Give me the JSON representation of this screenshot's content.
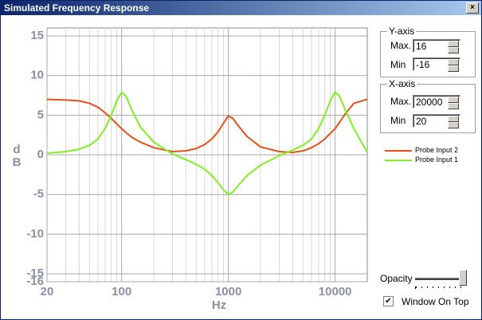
{
  "window": {
    "title": "Simulated Frequency Response"
  },
  "chart_data": {
    "type": "line",
    "x_label": "Hz",
    "y_label": [
      "d",
      "B"
    ],
    "x": [
      20,
      30,
      40,
      50,
      60,
      70,
      80,
      90,
      100,
      110,
      125,
      150,
      200,
      300,
      400,
      500,
      600,
      700,
      800,
      900,
      1000,
      1100,
      1250,
      1500,
      2000,
      3000,
      4000,
      5000,
      6000,
      7000,
      8000,
      9000,
      10000,
      11000,
      12500,
      15000,
      20000
    ],
    "series": [
      {
        "name": "Probe Input 2",
        "color": "#e8501a",
        "values": [
          7.0,
          6.9,
          6.8,
          6.5,
          6.0,
          5.3,
          4.6,
          3.9,
          3.3,
          2.8,
          2.2,
          1.6,
          0.9,
          0.4,
          0.5,
          0.8,
          1.3,
          2.0,
          2.9,
          4.0,
          4.9,
          4.6,
          3.6,
          2.3,
          1.0,
          0.4,
          0.3,
          0.5,
          0.9,
          1.4,
          2.0,
          2.7,
          3.3,
          4.1,
          5.2,
          6.5,
          7.0
        ]
      },
      {
        "name": "Probe Input 1",
        "color": "#80f020",
        "values": [
          0.2,
          0.4,
          0.7,
          1.2,
          2.0,
          3.3,
          5.0,
          6.8,
          7.9,
          7.4,
          5.6,
          3.5,
          1.6,
          0.1,
          -0.6,
          -1.2,
          -1.8,
          -2.6,
          -3.5,
          -4.4,
          -5.0,
          -4.7,
          -3.8,
          -2.6,
          -1.3,
          -0.1,
          0.6,
          1.2,
          2.0,
          3.3,
          5.0,
          6.8,
          7.9,
          7.4,
          5.6,
          3.3,
          0.3
        ]
      }
    ],
    "xscale": "log",
    "xlim": [
      20,
      20000
    ],
    "xticks": [
      20,
      100,
      1000,
      10000
    ],
    "x_minor_ticks": [
      30,
      40,
      50,
      60,
      70,
      80,
      90,
      200,
      300,
      400,
      500,
      600,
      700,
      800,
      900,
      2000,
      3000,
      4000,
      5000,
      6000,
      7000,
      8000,
      9000
    ],
    "ylim": [
      -16,
      16
    ],
    "yticks": [
      15,
      10,
      5,
      0,
      -5,
      -10,
      -15,
      -16
    ],
    "grid": true
  },
  "controls": {
    "y_axis": {
      "title": "Y-axis",
      "max_label": "Max.",
      "max": "16",
      "min_label": "Min",
      "min": "-16"
    },
    "x_axis": {
      "title": "X-axis",
      "max_label": "Max.",
      "max": "20000",
      "min_label": "Min",
      "min": "20"
    },
    "opacity_label": "Opacity",
    "window_on_top": {
      "label": "Window On Top",
      "checked": true
    }
  }
}
